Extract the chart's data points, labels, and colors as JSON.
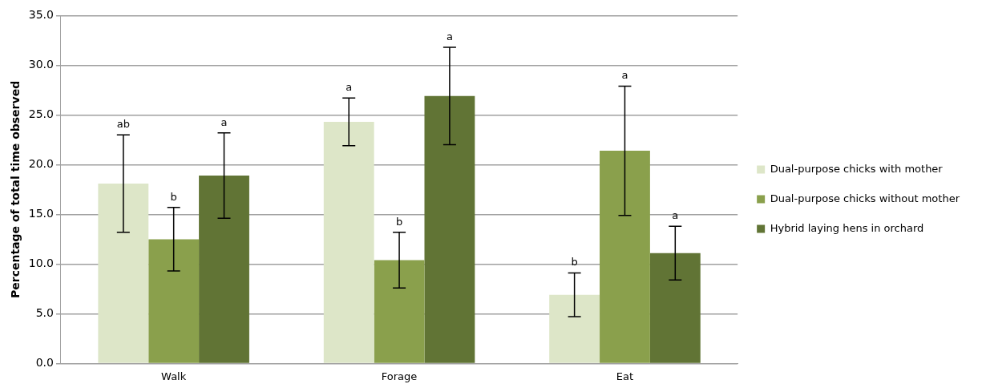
{
  "chart_data": {
    "type": "bar",
    "ylabel": "Percentage of total time observed",
    "categories": [
      "Walk",
      "Forage",
      "Eat"
    ],
    "series": [
      {
        "name": "Dual-purpose chicks with mother",
        "color": "#dde6c8",
        "values": [
          18.1,
          24.3,
          6.9
        ],
        "errors": [
          4.9,
          2.4,
          2.2
        ]
      },
      {
        "name": "Dual-purpose chicks without mother",
        "color": "#8aa04c",
        "values": [
          12.5,
          10.4,
          21.4
        ],
        "errors": [
          3.2,
          2.8,
          6.5
        ]
      },
      {
        "name": "Hybrid laying hens in orchard",
        "color": "#617435",
        "values": [
          18.9,
          26.9,
          11.1
        ],
        "errors": [
          4.3,
          4.9,
          2.7
        ]
      }
    ],
    "annotations": [
      "ab",
      "b",
      "a",
      "a",
      "b",
      "a",
      "b",
      "a",
      "a"
    ],
    "ylim": [
      0,
      35
    ],
    "yticks": [
      {
        "value": 0,
        "label": "0.0"
      },
      {
        "value": 5,
        "label": "5.0"
      },
      {
        "value": 10,
        "label": "10.0"
      },
      {
        "value": 15,
        "label": "15.0"
      },
      {
        "value": 20,
        "label": "20.0"
      },
      {
        "value": 25,
        "label": "25.0"
      },
      {
        "value": 30,
        "label": "30.0"
      },
      {
        "value": 35,
        "label": "35.0"
      }
    ],
    "grid": "y",
    "legend": "right"
  }
}
